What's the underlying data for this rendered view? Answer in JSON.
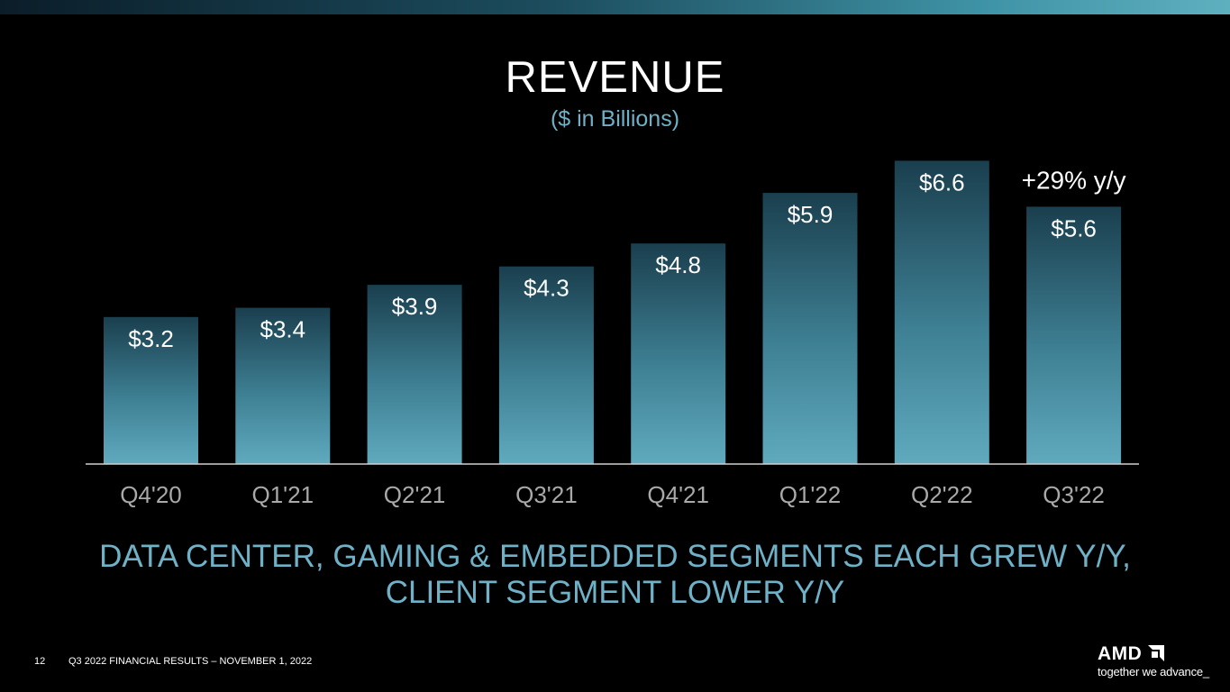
{
  "header": {
    "title": "REVENUE",
    "subtitle": "($ in Billions)"
  },
  "chart_data": {
    "type": "bar",
    "title": "REVENUE",
    "subtitle": "($ in Billions)",
    "categories": [
      "Q4'20",
      "Q1'21",
      "Q2'21",
      "Q3'21",
      "Q4'21",
      "Q1'22",
      "Q2'22",
      "Q3'22"
    ],
    "values": [
      3.2,
      3.4,
      3.9,
      4.3,
      4.8,
      5.9,
      6.6,
      5.6
    ],
    "data_labels": [
      "$3.2",
      "$3.4",
      "$3.9",
      "$4.3",
      "$4.8",
      "$5.9",
      "$6.6",
      "$5.6"
    ],
    "annotations": [
      {
        "category": "Q3'22",
        "text": "+29% y/y"
      }
    ],
    "ylim": [
      0,
      7
    ],
    "grid": false,
    "legend": "none",
    "xlabel": "",
    "ylabel": "",
    "colors": {
      "bar_top": "#1a3f4e",
      "bar_bottom": "#5fa9bd",
      "axis": "#d0d0d0",
      "tick": "#b0b0b0",
      "label": "#ffffff"
    }
  },
  "headline": {
    "line1": "DATA CENTER, GAMING & EMBEDDED SEGMENTS EACH GREW Y/Y,",
    "line2": "CLIENT SEGMENT LOWER Y/Y"
  },
  "footer": {
    "page_number": "12",
    "text": "Q3 2022 FINANCIAL RESULTS – NOVEMBER 1, 2022"
  },
  "logo": {
    "wordmark": "AMD",
    "tagline": "together we advance_",
    "icon": "amd-arrow-icon"
  },
  "colors": {
    "background": "#000000",
    "accent": "#6fb1c7"
  }
}
